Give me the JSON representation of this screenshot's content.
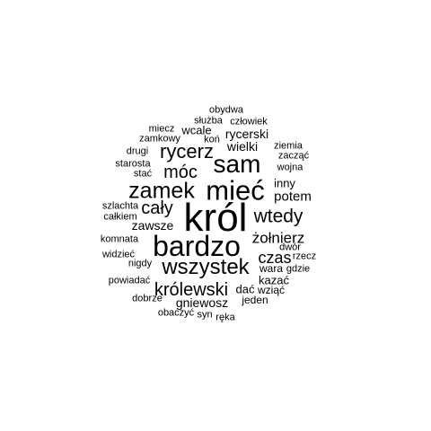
{
  "cloud": {
    "text_color": "#000000",
    "background": "#ffffff",
    "words": [
      "król",
      "bardzo",
      "mieć",
      "sam",
      "zamek",
      "wszystek",
      "rycerz",
      "móc",
      "wtedy",
      "cały",
      "królewski",
      "czas",
      "żołnierz",
      "potem",
      "rycerski",
      "wielki",
      "gniewosz",
      "zawsze",
      "inny",
      "wcale",
      "kazać",
      "dać",
      "wara",
      "wziąć",
      "jeden",
      "koń",
      "człowiek",
      "służba",
      "obydwa",
      "miecz",
      "zamkowy",
      "drugi",
      "starosta",
      "stać",
      "ziemia",
      "zacząć",
      "wojna",
      "szlachta",
      "całkiem",
      "komnata",
      "widzieć",
      "nigdy",
      "dwór",
      "rzecz",
      "gdzie",
      "powiadać",
      "dobrze",
      "obaczyć",
      "syn",
      "ręka"
    ]
  }
}
